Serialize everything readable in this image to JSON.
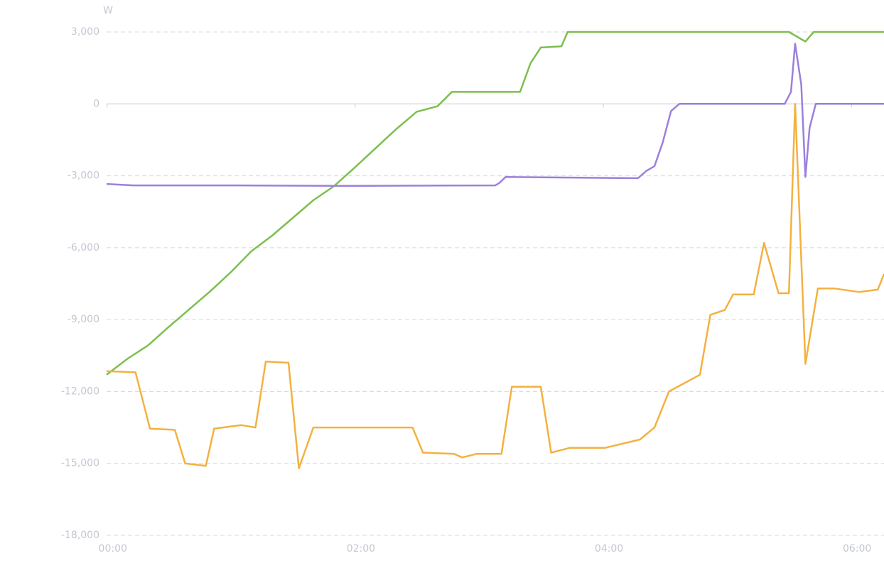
{
  "chart_data": {
    "type": "line",
    "y_unit": "W",
    "xlim": [
      -3,
      373
    ],
    "ylim": [
      -18000,
      3000
    ],
    "xticks": [
      {
        "value": 0,
        "label": "00:00"
      },
      {
        "value": 120,
        "label": "02:00"
      },
      {
        "value": 240,
        "label": "04:00"
      },
      {
        "value": 360,
        "label": "06:00"
      }
    ],
    "yticks": [
      {
        "value": 3000,
        "label": "3,000"
      },
      0,
      {
        "value": -3000,
        "label": "-3,000"
      },
      {
        "value": -6000,
        "label": "-6,000"
      },
      {
        "value": -9000,
        "label": "-9,000"
      },
      {
        "value": -12000,
        "label": "-12,000"
      },
      {
        "value": -15000,
        "label": "-15,000"
      },
      {
        "value": -18000,
        "label": "-18,000"
      }
    ],
    "grid": true,
    "series": [
      {
        "color": "#7dbf4e",
        "x": [
          -3,
          7,
          17,
          27,
          37,
          47,
          57,
          67,
          77,
          87,
          97,
          107,
          117,
          127,
          137,
          147,
          157,
          164,
          197,
          202,
          207,
          217,
          220,
          327,
          335,
          339,
          373
        ],
        "values": [
          -11300,
          -10640,
          -10080,
          -9310,
          -8570,
          -7830,
          -7030,
          -6150,
          -5500,
          -4760,
          -4020,
          -3430,
          -2660,
          -1860,
          -1060,
          -330,
          -100,
          500,
          500,
          1690,
          2350,
          2400,
          3000,
          3000,
          2600,
          3000,
          3000
        ]
      },
      {
        "color": "#9b80dc",
        "x": [
          -3,
          10,
          60,
          110,
          185,
          187,
          190,
          250,
          254,
          258,
          262,
          266,
          270,
          274,
          325,
          328,
          330,
          333,
          335,
          337,
          340,
          373
        ],
        "values": [
          -3340,
          -3400,
          -3400,
          -3420,
          -3400,
          -3300,
          -3050,
          -3100,
          -3100,
          -2800,
          -2600,
          -1600,
          -300,
          0,
          0,
          500,
          2510,
          800,
          -3050,
          -1000,
          0,
          0
        ]
      },
      {
        "color": "#f4b140",
        "x": [
          -3,
          11,
          18,
          30,
          35,
          45,
          49,
          62,
          69,
          74,
          85,
          90,
          97,
          120,
          145,
          150,
          165,
          169,
          176,
          188,
          193,
          207,
          212,
          221,
          238,
          255,
          262,
          269,
          284,
          289,
          296,
          300,
          310,
          315,
          322,
          327,
          330,
          335,
          341,
          349,
          361,
          370,
          373
        ],
        "values": [
          -11150,
          -11200,
          -13550,
          -13600,
          -15000,
          -15100,
          -13550,
          -13400,
          -13500,
          -10750,
          -10800,
          -15200,
          -13500,
          -13500,
          -13500,
          -14550,
          -14600,
          -14750,
          -14600,
          -14600,
          -11800,
          -11800,
          -14550,
          -14350,
          -14350,
          -14000,
          -13500,
          -12000,
          -11300,
          -8800,
          -8600,
          -7950,
          -7950,
          -5800,
          -7900,
          -7900,
          0,
          -10850,
          -7700,
          -7700,
          -7850,
          -7750,
          -7100
        ]
      }
    ]
  }
}
